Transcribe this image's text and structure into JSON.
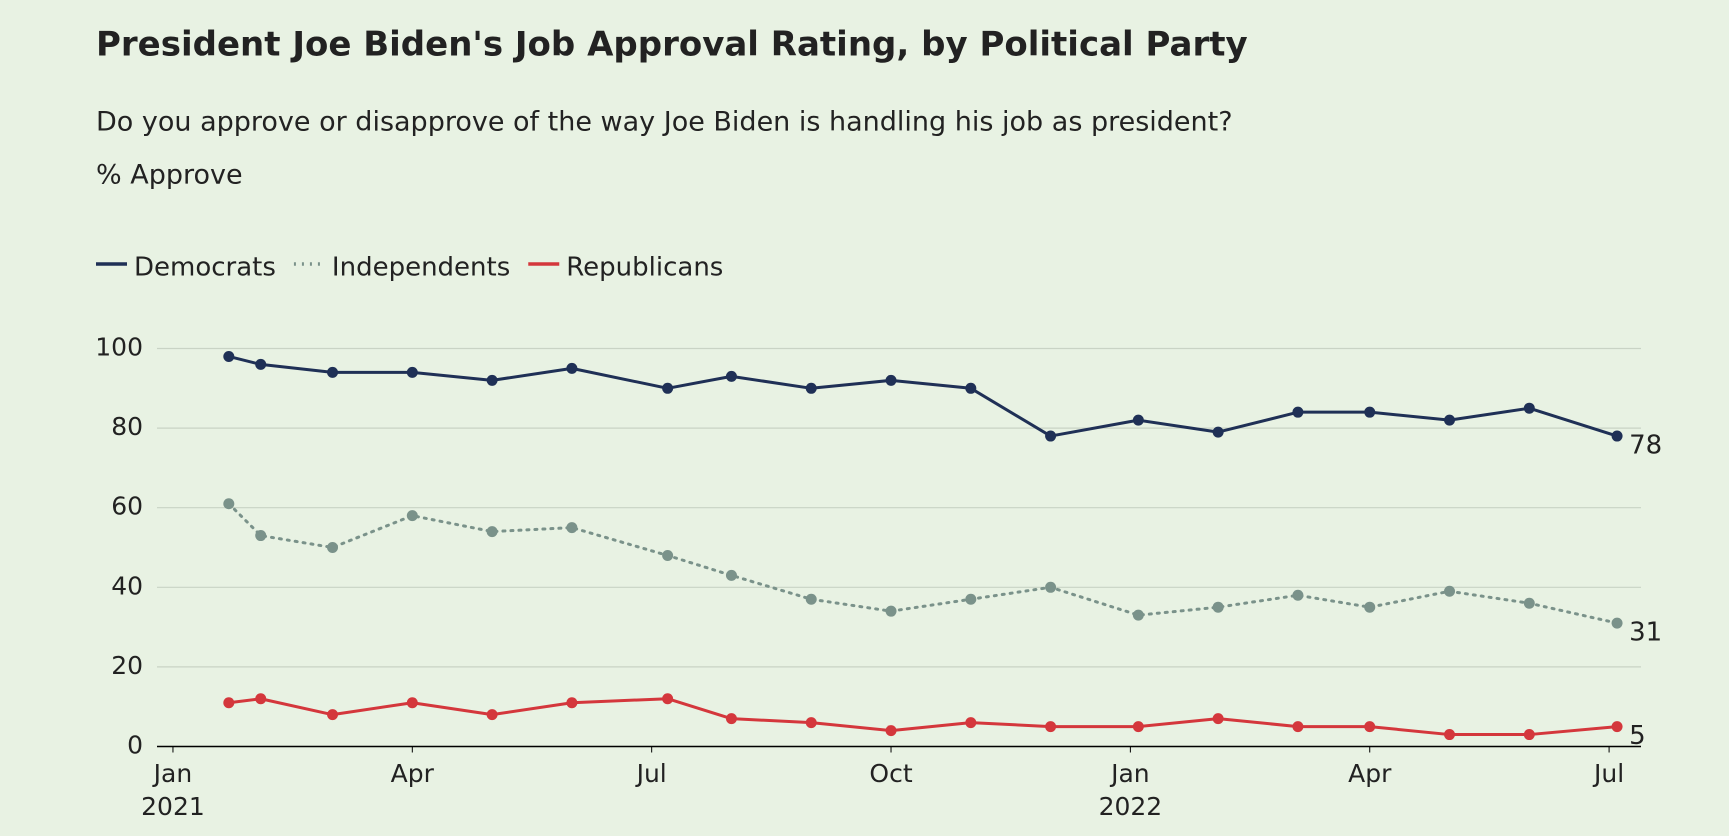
{
  "chart_data": {
    "type": "line",
    "title": "President Joe Biden's Job Approval Rating, by Political Party",
    "subtitle": "Do you approve or disapprove of the way Joe Biden is handling his job as president?",
    "y_label": "% Approve",
    "x": [
      0.7,
      1.1,
      2.0,
      3.0,
      4.0,
      5.0,
      6.2,
      7.0,
      8.0,
      9.0,
      10.0,
      11.0,
      12.1,
      13.1,
      14.1,
      15.0,
      16.0,
      17.0,
      18.1
    ],
    "xlim": [
      -0.2,
      18.4
    ],
    "xticks": [
      {
        "value": 0,
        "label": "Jan\n2021"
      },
      {
        "value": 3,
        "label": "Apr"
      },
      {
        "value": 6,
        "label": "Jul"
      },
      {
        "value": 9,
        "label": "Oct"
      },
      {
        "value": 12,
        "label": "Jan\n2022"
      },
      {
        "value": 15,
        "label": "Apr"
      },
      {
        "value": 18,
        "label": "Jul"
      }
    ],
    "ylim": [
      0,
      100
    ],
    "yticks": [
      0,
      20,
      40,
      60,
      80,
      100
    ],
    "grid": true,
    "series": [
      {
        "name": "Democrats",
        "color": "#1f3056",
        "style": "solid",
        "values": [
          98,
          96,
          94,
          94,
          92,
          95,
          90,
          93,
          90,
          92,
          90,
          78,
          82,
          79,
          84,
          84,
          82,
          85,
          78
        ]
      },
      {
        "name": "Independents",
        "color": "#7a928a",
        "style": "dotted",
        "values": [
          61,
          53,
          50,
          58,
          54,
          55,
          48,
          43,
          37,
          34,
          37,
          40,
          33,
          35,
          38,
          35,
          39,
          36,
          31
        ]
      },
      {
        "name": "Republicans",
        "color": "#d4373c",
        "style": "solid",
        "values": [
          11,
          12,
          8,
          11,
          8,
          11,
          12,
          7,
          6,
          4,
          6,
          5,
          5,
          7,
          5,
          5,
          3,
          3,
          5
        ]
      }
    ]
  }
}
